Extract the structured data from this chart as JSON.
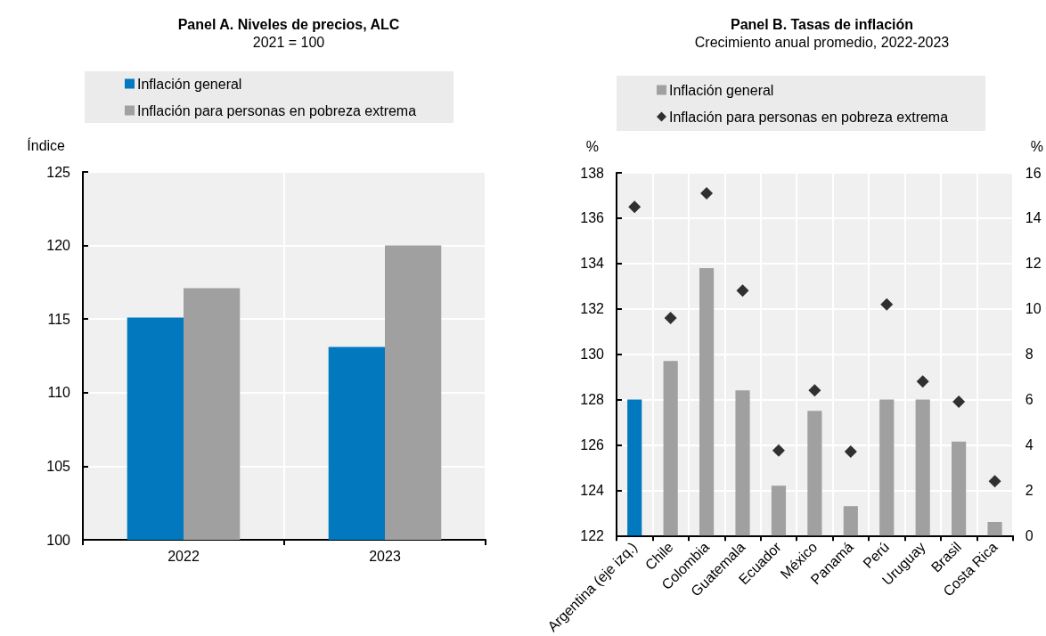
{
  "chart_data": [
    {
      "type": "bar",
      "title": "Panel A. Niveles de precios, ALC",
      "subtitle": "2021 = 100",
      "ylabel": "Índice",
      "categories": [
        "2022",
        "2023"
      ],
      "series": [
        {
          "name": "Inflación general",
          "color": "#0278be",
          "values": [
            115.1,
            113.1
          ]
        },
        {
          "name": "Inflación para personas en pobreza extrema",
          "color": "#a0a0a0",
          "values": [
            117.1,
            120.0
          ]
        }
      ],
      "ylim": [
        100,
        125
      ],
      "yticks": [
        100,
        105,
        110,
        115,
        120,
        125
      ],
      "grid": true,
      "legend": "top"
    },
    {
      "type": "bar",
      "title": "Panel B. Tasas de inflación",
      "subtitle": "Crecimiento anual promedio, 2022-2023",
      "ylabel": "%",
      "y2label": "%",
      "categories": [
        "Argentina (eje izq.)",
        "Chile",
        "Colombia",
        "Guatemala",
        "Ecuador",
        "México",
        "Panamá",
        "Perú",
        "Uruguay",
        "Brasil",
        "Costa Rica"
      ],
      "series": [
        {
          "name": "Inflación general",
          "color": "#a0a0a0",
          "axis": "y2",
          "values": [
            null,
            7.7,
            11.8,
            6.4,
            2.2,
            5.5,
            1.3,
            6.0,
            6.0,
            4.15,
            0.6
          ]
        },
        {
          "color": "#0278be",
          "values": [
            128.0,
            null,
            null,
            null,
            null,
            null,
            null,
            null,
            null,
            null,
            null
          ]
        },
        {
          "name": "Inflación para personas en pobreza extrema",
          "type": "scatter",
          "marker": "diamond",
          "color": "#000000",
          "axis": "y2",
          "values": [
            null,
            9.6,
            15.1,
            10.8,
            3.75,
            6.4,
            3.7,
            10.2,
            6.8,
            5.9,
            2.4
          ]
        },
        {
          "type": "scatter",
          "marker": "diamond",
          "color": "#000000",
          "values": [
            136.5,
            null,
            null,
            null,
            null,
            null,
            null,
            null,
            null,
            null,
            null
          ]
        }
      ],
      "ylim": [
        122,
        138
      ],
      "yticks": [
        122,
        124,
        126,
        128,
        130,
        132,
        134,
        136,
        138
      ],
      "y2lim": [
        0,
        16
      ],
      "y2ticks": [
        0,
        2,
        4,
        6,
        8,
        10,
        12,
        14,
        16
      ],
      "grid": true,
      "legend": "top"
    }
  ]
}
